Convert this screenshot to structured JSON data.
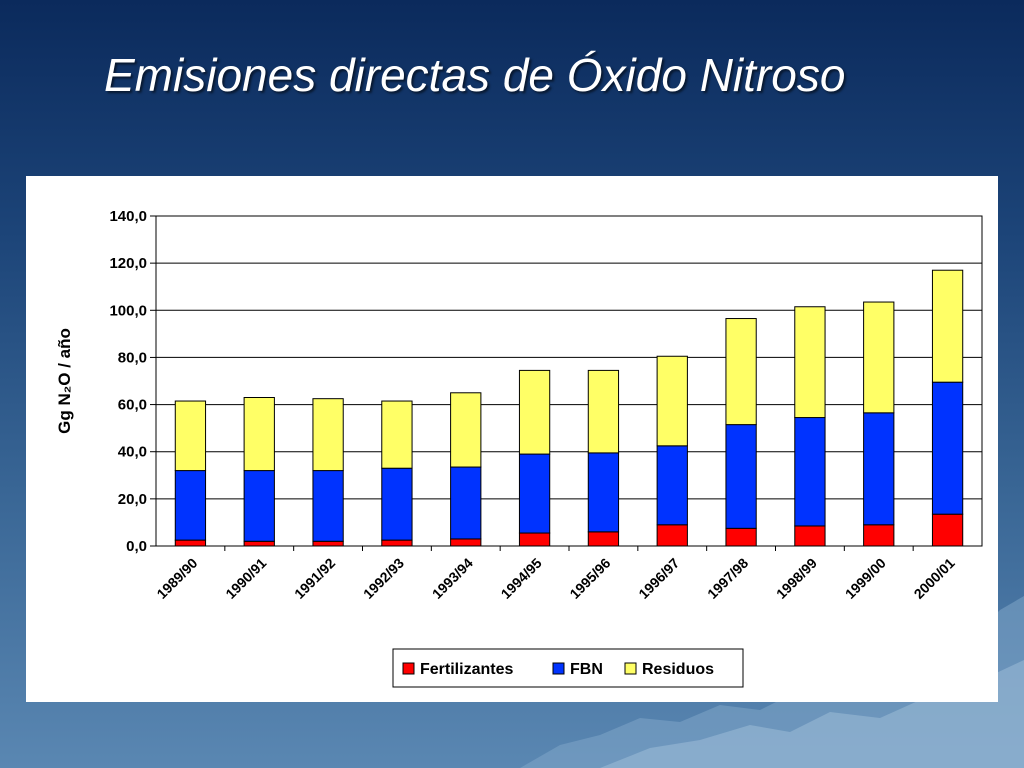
{
  "slide": {
    "title": "Emisiones directas de Óxido Nitroso"
  },
  "colors": {
    "Fertilizantes": "#ff0000",
    "FBN": "#0033ff",
    "Residuos": "#ffff66"
  },
  "chart_data": {
    "type": "bar",
    "stacked": true,
    "title": "",
    "xlabel": "",
    "ylabel": "Gg N₂O / año",
    "ylim": [
      0,
      140
    ],
    "yticks": [
      "0,0",
      "20,0",
      "40,0",
      "60,0",
      "80,0",
      "100,0",
      "120,0",
      "140,0"
    ],
    "grid": true,
    "legend": "bottom-center",
    "categories": [
      "1989/90",
      "1990/91",
      "1991/92",
      "1992/93",
      "1993/94",
      "1994/95",
      "1995/96",
      "1996/97",
      "1997/98",
      "1998/99",
      "1999/00",
      "2000/01"
    ],
    "series": [
      {
        "name": "Fertilizantes",
        "values": [
          2.5,
          2.0,
          2.0,
          2.5,
          3.0,
          5.5,
          6.0,
          9.0,
          7.5,
          8.5,
          9.0,
          13.5
        ]
      },
      {
        "name": "FBN",
        "values": [
          29.5,
          30.0,
          30.0,
          30.5,
          30.5,
          33.5,
          33.5,
          33.5,
          44.0,
          46.0,
          47.5,
          56.0
        ]
      },
      {
        "name": "Residuos",
        "values": [
          29.5,
          31.0,
          30.5,
          28.5,
          31.5,
          35.5,
          35.0,
          38.0,
          45.0,
          47.0,
          47.0,
          47.5
        ]
      }
    ]
  }
}
